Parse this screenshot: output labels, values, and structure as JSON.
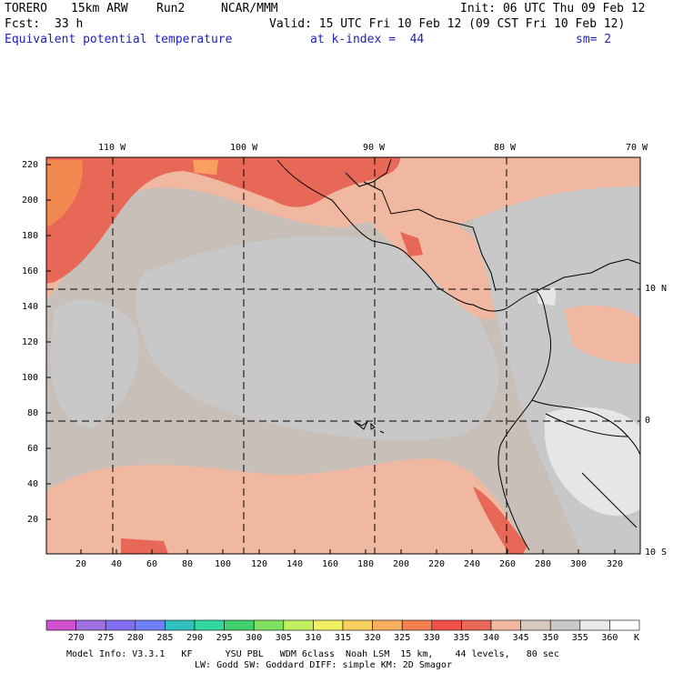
{
  "header": {
    "model": "TORERO",
    "resolution": "15km ARW",
    "run": "Run2",
    "org": "NCAR/MMM",
    "init": "Init: 06 UTC Thu 09 Feb 12",
    "fcst_label": "Fcst:",
    "fcst_value": "33 h",
    "valid": "Valid: 15 UTC Fri 10 Feb 12 (09 CST Fri 10 Feb 12)",
    "field": "Equivalent potential temperature",
    "level": "at k-index =  44",
    "smooth": "sm= 2"
  },
  "map": {
    "lon_labels": [
      "110 W",
      "100 W",
      "90 W",
      "80 W",
      "70 W"
    ],
    "lat_labels": [
      "10 N",
      "0",
      "10 S"
    ],
    "y_ticks": [
      "220",
      "200",
      "180",
      "160",
      "140",
      "120",
      "100",
      "80",
      "60",
      "40",
      "20"
    ],
    "x_ticks": [
      "20",
      "40",
      "60",
      "80",
      "100",
      "120",
      "140",
      "160",
      "180",
      "200",
      "220",
      "240",
      "260",
      "280",
      "300",
      "320"
    ],
    "colors": {
      "base": "#c8c0b8",
      "c335": "#e86858",
      "c340": "#f0b8a0",
      "c345": "#d8c8bc",
      "c350": "#c8c8c8",
      "c355": "#e6e6e6",
      "c330": "#f05048",
      "c320": "#f8a060"
    }
  },
  "colorbar": {
    "values": [
      "270",
      "275",
      "280",
      "285",
      "290",
      "295",
      "300",
      "305",
      "310",
      "315",
      "320",
      "325",
      "330",
      "335",
      "340",
      "345",
      "350",
      "355",
      "360"
    ],
    "unit": "K",
    "colors": [
      "#d050d0",
      "#a070e0",
      "#8070f0",
      "#7080f8",
      "#30c0c0",
      "#30d8a0",
      "#40d070",
      "#80e060",
      "#c0f060",
      "#f0f060",
      "#f8d060",
      "#f8b060",
      "#f88050",
      "#f05048",
      "#e86858",
      "#f0b8a0",
      "#d8c8bc",
      "#c8c8c8",
      "#e8e8e8",
      "#ffffff"
    ]
  },
  "footer": {
    "line1": "Model Info: V3.3.1   KF      YSU PBL   WDM 6class  Noah LSM  15 km,    44 levels,   80 sec",
    "line2": "LW: Godd SW: Goddard DIFF: simple KM: 2D Smagor"
  }
}
